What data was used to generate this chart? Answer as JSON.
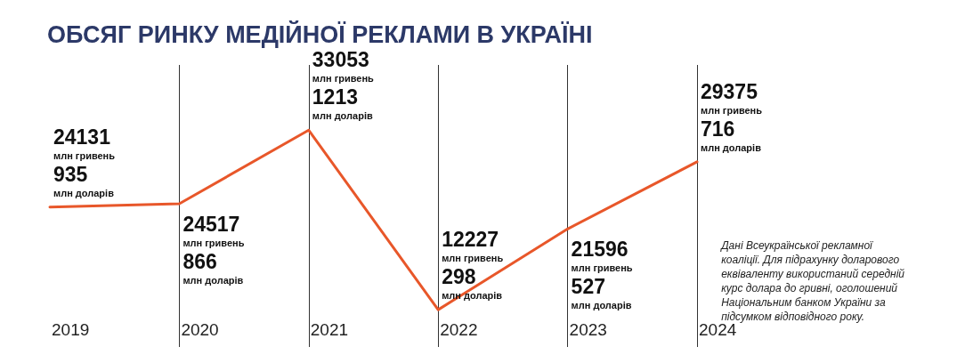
{
  "chart_data": {
    "type": "line",
    "title": "ОБСЯГ РИНКУ МЕДІЙНОЇ РЕКЛАМИ В УКРАЇНІ",
    "categories": [
      "2019",
      "2020",
      "2021",
      "2022",
      "2023",
      "2024"
    ],
    "series": [
      {
        "color": "#e8572a",
        "values": [
          24131,
          24517,
          33053,
          12227,
          21596,
          29375
        ],
        "value_labels": [
          "24131\nмлн гривень\n935\nмлн доларів",
          "24517\nмлн гривень\n866\nмлн доларів",
          "33053\nмлн гривень\n1213\nмлн доларів",
          "12227\nмлн гривень\n298\nмлн доларів",
          "21596\nмлн гривень\n527\nмлн доларів",
          "29375\nмлн гривень\n716\nмлн доларів"
        ]
      }
    ],
    "grid": "x",
    "marker": "none",
    "line_style": "solid",
    "annotations": [
      "Дані Всеукраїнської рекламної\nкоаліції. Для підрахунку доларового\nеквіваленту використаний середній\nкурс долара до гривні, оголошений\nНаціональним банком України за\nпідсумком відповідного року."
    ]
  }
}
